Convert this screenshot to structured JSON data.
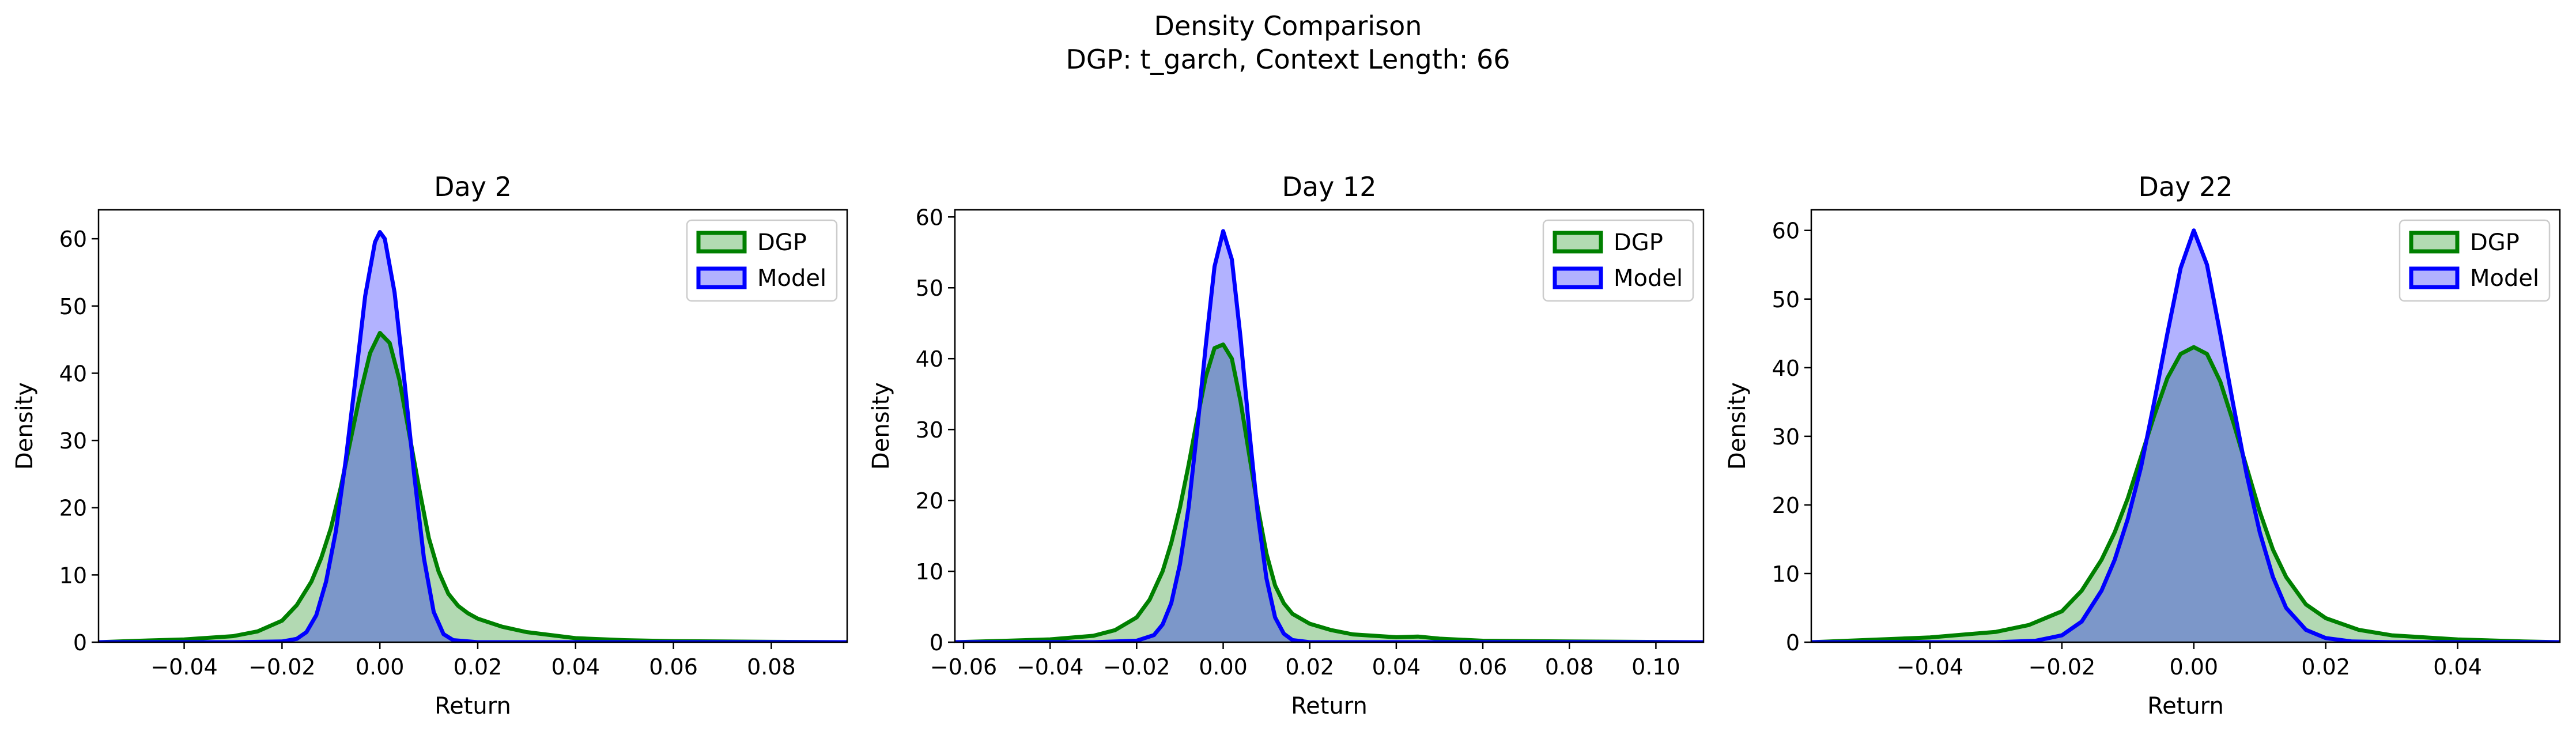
{
  "figure": {
    "title": "Density Comparison",
    "subtitle": "DGP: t_garch, Context Length: 66"
  },
  "chart_data": [
    {
      "type": "area",
      "title": "Day 2",
      "xlabel": "Return",
      "ylabel": "Density",
      "xlim": [
        -0.0575,
        0.0955
      ],
      "ylim": [
        0,
        64.3
      ],
      "xticks": [
        -0.04,
        -0.02,
        0.0,
        0.02,
        0.04,
        0.06,
        0.08
      ],
      "xtick_labels": [
        "−0.04",
        "−0.02",
        "0.00",
        "0.02",
        "0.04",
        "0.06",
        "0.08"
      ],
      "yticks": [
        0,
        10,
        20,
        30,
        40,
        50,
        60
      ],
      "legend": "top-right",
      "series": [
        {
          "name": "DGP",
          "color": "#008000",
          "fill": "#b2dbb2",
          "x": [
            -0.0575,
            -0.05,
            -0.04,
            -0.03,
            -0.025,
            -0.02,
            -0.017,
            -0.014,
            -0.012,
            -0.01,
            -0.008,
            -0.006,
            -0.004,
            -0.002,
            0.0,
            0.002,
            0.004,
            0.006,
            0.008,
            0.01,
            0.012,
            0.014,
            0.016,
            0.018,
            0.02,
            0.025,
            0.03,
            0.04,
            0.05,
            0.06,
            0.07,
            0.08,
            0.0955
          ],
          "y": [
            0.0,
            0.2,
            0.4,
            0.9,
            1.6,
            3.2,
            5.5,
            9.0,
            12.5,
            17.0,
            23.0,
            30.0,
            37.0,
            43.0,
            46.0,
            44.5,
            39.0,
            31.0,
            23.0,
            15.5,
            10.5,
            7.2,
            5.4,
            4.3,
            3.5,
            2.3,
            1.5,
            0.6,
            0.3,
            0.15,
            0.1,
            0.05,
            0.0
          ]
        },
        {
          "name": "Model",
          "color": "#0000ff",
          "fill": "#b2b2ff",
          "x": [
            -0.0575,
            -0.03,
            -0.02,
            -0.017,
            -0.015,
            -0.013,
            -0.011,
            -0.009,
            -0.007,
            -0.005,
            -0.003,
            -0.001,
            0.0,
            0.001,
            0.003,
            0.005,
            0.007,
            0.009,
            0.011,
            0.013,
            0.015,
            0.02,
            0.0955
          ],
          "y": [
            0.0,
            0.0,
            0.1,
            0.5,
            1.5,
            4.0,
            9.0,
            16.5,
            27.0,
            39.0,
            51.5,
            59.5,
            61.0,
            60.0,
            52.0,
            39.0,
            25.0,
            12.5,
            4.5,
            1.2,
            0.3,
            0.0,
            0.0
          ]
        }
      ]
    },
    {
      "type": "area",
      "title": "Day 12",
      "xlabel": "Return",
      "ylabel": "Density",
      "xlim": [
        -0.062,
        0.111
      ],
      "ylim": [
        0,
        61
      ],
      "xticks": [
        -0.06,
        -0.04,
        -0.02,
        0.0,
        0.02,
        0.04,
        0.06,
        0.08,
        0.1
      ],
      "xtick_labels": [
        "−0.06",
        "−0.04",
        "−0.02",
        "0.00",
        "0.02",
        "0.04",
        "0.06",
        "0.08",
        "0.10"
      ],
      "yticks": [
        0,
        10,
        20,
        30,
        40,
        50,
        60
      ],
      "legend": "top-right",
      "series": [
        {
          "name": "DGP",
          "color": "#008000",
          "fill": "#b2dbb2",
          "x": [
            -0.062,
            -0.05,
            -0.04,
            -0.03,
            -0.025,
            -0.02,
            -0.017,
            -0.014,
            -0.012,
            -0.01,
            -0.008,
            -0.006,
            -0.004,
            -0.002,
            0.0,
            0.002,
            0.004,
            0.006,
            0.008,
            0.01,
            0.012,
            0.014,
            0.016,
            0.02,
            0.025,
            0.03,
            0.04,
            0.045,
            0.05,
            0.06,
            0.08,
            0.111
          ],
          "y": [
            0.0,
            0.2,
            0.4,
            0.9,
            1.7,
            3.5,
            6.0,
            10.0,
            14.0,
            19.0,
            25.0,
            31.5,
            37.5,
            41.5,
            42.0,
            40.0,
            34.0,
            26.5,
            19.0,
            12.5,
            8.0,
            5.5,
            4.0,
            2.6,
            1.7,
            1.1,
            0.7,
            0.8,
            0.5,
            0.2,
            0.1,
            0.0
          ]
        },
        {
          "name": "Model",
          "color": "#0000ff",
          "fill": "#b2b2ff",
          "x": [
            -0.062,
            -0.03,
            -0.02,
            -0.016,
            -0.014,
            -0.012,
            -0.01,
            -0.008,
            -0.006,
            -0.004,
            -0.002,
            0.0,
            0.002,
            0.004,
            0.006,
            0.008,
            0.01,
            0.012,
            0.014,
            0.016,
            0.02,
            0.111
          ],
          "y": [
            0.0,
            0.0,
            0.2,
            1.0,
            2.5,
            5.5,
            11.0,
            19.0,
            30.0,
            42.0,
            53.0,
            58.0,
            54.0,
            43.0,
            30.0,
            18.0,
            9.0,
            3.5,
            1.2,
            0.3,
            0.0,
            0.0
          ]
        }
      ]
    },
    {
      "type": "area",
      "title": "Day 22",
      "xlabel": "Return",
      "ylabel": "Density",
      "xlim": [
        -0.058,
        0.0555
      ],
      "ylim": [
        0,
        63
      ],
      "xticks": [
        -0.04,
        -0.02,
        0.0,
        0.02,
        0.04
      ],
      "xtick_labels": [
        "−0.04",
        "−0.02",
        "0.00",
        "0.02",
        "0.04"
      ],
      "yticks": [
        0,
        10,
        20,
        30,
        40,
        50,
        60
      ],
      "legend": "top-right",
      "series": [
        {
          "name": "DGP",
          "color": "#008000",
          "fill": "#b2dbb2",
          "x": [
            -0.058,
            -0.05,
            -0.04,
            -0.03,
            -0.025,
            -0.02,
            -0.017,
            -0.014,
            -0.012,
            -0.01,
            -0.008,
            -0.006,
            -0.004,
            -0.002,
            0.0,
            0.002,
            0.004,
            0.006,
            0.008,
            0.01,
            0.012,
            0.014,
            0.017,
            0.02,
            0.025,
            0.03,
            0.04,
            0.05,
            0.0555
          ],
          "y": [
            0.0,
            0.3,
            0.7,
            1.5,
            2.5,
            4.5,
            7.5,
            12.0,
            16.0,
            21.0,
            27.0,
            33.0,
            38.5,
            42.0,
            43.0,
            42.0,
            38.0,
            32.0,
            25.5,
            19.0,
            13.5,
            9.5,
            5.5,
            3.5,
            1.8,
            1.0,
            0.4,
            0.1,
            0.0
          ]
        },
        {
          "name": "Model",
          "color": "#0000ff",
          "fill": "#b2b2ff",
          "x": [
            -0.058,
            -0.03,
            -0.024,
            -0.02,
            -0.017,
            -0.014,
            -0.012,
            -0.01,
            -0.008,
            -0.006,
            -0.004,
            -0.002,
            0.0,
            0.002,
            0.004,
            0.006,
            0.008,
            0.01,
            0.012,
            0.014,
            0.017,
            0.02,
            0.024,
            0.03,
            0.0555
          ],
          "y": [
            0.0,
            0.0,
            0.2,
            1.0,
            3.0,
            7.5,
            12.0,
            18.0,
            25.5,
            35.0,
            45.0,
            54.5,
            60.0,
            55.0,
            45.0,
            34.5,
            24.5,
            16.0,
            9.5,
            5.0,
            1.8,
            0.6,
            0.1,
            0.0,
            0.0
          ]
        }
      ]
    }
  ]
}
